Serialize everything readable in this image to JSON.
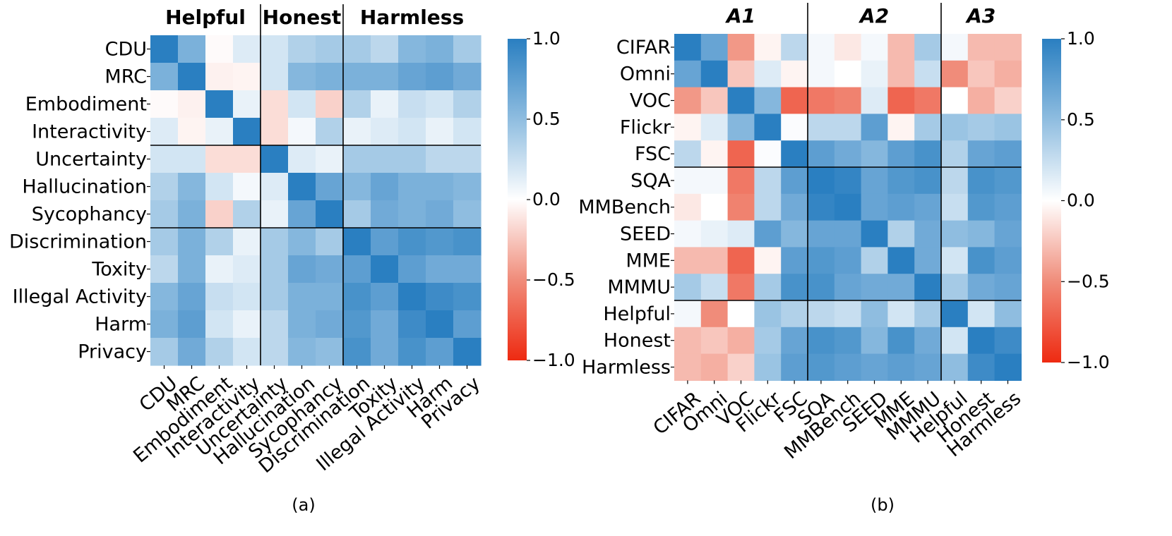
{
  "chart_data": [
    {
      "type": "heatmap",
      "caption": "(a)",
      "groups": [
        "Helpful",
        "Honest",
        "Harmless"
      ],
      "group_sizes": [
        4,
        3,
        5
      ],
      "labels": [
        "CDU",
        "MRC",
        "Embodiment",
        "Interactivity",
        "Uncertainty",
        "Hallucination",
        "Sycophancy",
        "Discrimination",
        "Toxity",
        "Illegal Activity",
        "Harm",
        "Privacy"
      ],
      "colorbar": {
        "min": -1.0,
        "max": 1.0,
        "ticks": [
          "1.0",
          "0.5",
          "0.0",
          "−0.5",
          "−1.0"
        ],
        "tick_values": [
          1.0,
          0.5,
          0.0,
          -0.5,
          -1.0
        ]
      },
      "matrix": [
        [
          1.0,
          0.6,
          -0.02,
          0.15,
          0.2,
          0.35,
          0.4,
          0.4,
          0.3,
          0.55,
          0.6,
          0.4
        ],
        [
          0.6,
          1.0,
          -0.06,
          -0.05,
          0.2,
          0.55,
          0.6,
          0.6,
          0.6,
          0.7,
          0.75,
          0.65
        ],
        [
          -0.02,
          -0.06,
          1.0,
          0.1,
          -0.15,
          0.2,
          -0.2,
          0.35,
          0.1,
          0.25,
          0.2,
          0.35
        ],
        [
          0.15,
          -0.05,
          0.1,
          1.0,
          -0.15,
          0.05,
          0.35,
          0.1,
          0.15,
          0.2,
          0.1,
          0.2
        ],
        [
          0.2,
          0.2,
          -0.15,
          -0.15,
          1.0,
          0.15,
          0.1,
          0.4,
          0.4,
          0.4,
          0.3,
          0.3
        ],
        [
          0.35,
          0.55,
          0.2,
          0.05,
          0.15,
          1.0,
          0.7,
          0.55,
          0.7,
          0.6,
          0.6,
          0.55
        ],
        [
          0.4,
          0.6,
          -0.2,
          0.35,
          0.1,
          0.7,
          1.0,
          0.4,
          0.65,
          0.6,
          0.65,
          0.5
        ],
        [
          0.4,
          0.6,
          0.35,
          0.1,
          0.4,
          0.55,
          0.4,
          1.0,
          0.75,
          0.85,
          0.8,
          0.85
        ],
        [
          0.3,
          0.6,
          0.1,
          0.15,
          0.4,
          0.7,
          0.65,
          0.75,
          1.0,
          0.75,
          0.65,
          0.65
        ],
        [
          0.55,
          0.7,
          0.25,
          0.2,
          0.4,
          0.6,
          0.6,
          0.85,
          0.75,
          1.0,
          0.9,
          0.85
        ],
        [
          0.6,
          0.75,
          0.2,
          0.1,
          0.3,
          0.6,
          0.65,
          0.8,
          0.65,
          0.9,
          1.0,
          0.75
        ],
        [
          0.4,
          0.65,
          0.35,
          0.2,
          0.3,
          0.55,
          0.5,
          0.85,
          0.65,
          0.85,
          0.75,
          1.0
        ]
      ]
    },
    {
      "type": "heatmap",
      "caption": "(b)",
      "groups": [
        "A1",
        "A2",
        "A3"
      ],
      "group_sizes": [
        5,
        5,
        3
      ],
      "labels": [
        "CIFAR",
        "Omni",
        "VOC",
        "Flickr",
        "FSC",
        "SQA",
        "MMBench",
        "SEED",
        "MME",
        "MMMU",
        "Helpful",
        "Honest",
        "Harmless"
      ],
      "colorbar": {
        "min": -1.0,
        "max": 1.0,
        "ticks": [
          "1.0",
          "0.5",
          "0.0",
          "−0.5",
          "−1.0"
        ],
        "tick_values": [
          1.0,
          0.5,
          0.0,
          -0.5,
          -1.0
        ]
      },
      "matrix": [
        [
          1.0,
          0.7,
          -0.45,
          -0.05,
          0.3,
          0.05,
          -0.1,
          0.05,
          -0.3,
          0.4,
          0.05,
          -0.3,
          -0.3
        ],
        [
          0.7,
          1.0,
          -0.25,
          0.15,
          -0.05,
          0.05,
          0.0,
          0.1,
          -0.3,
          0.25,
          -0.5,
          -0.25,
          -0.35
        ],
        [
          -0.45,
          -0.25,
          1.0,
          0.55,
          -0.7,
          -0.6,
          -0.55,
          0.15,
          -0.7,
          -0.6,
          0.0,
          -0.35,
          -0.2
        ],
        [
          -0.05,
          0.15,
          0.55,
          1.0,
          0.02,
          0.3,
          0.3,
          0.75,
          -0.05,
          0.4,
          0.45,
          0.4,
          0.45
        ],
        [
          0.3,
          -0.05,
          -0.7,
          0.02,
          1.0,
          0.75,
          0.65,
          0.55,
          0.75,
          0.85,
          0.35,
          0.7,
          0.75
        ],
        [
          0.05,
          0.05,
          -0.6,
          0.3,
          0.75,
          1.0,
          0.95,
          0.7,
          0.8,
          0.85,
          0.3,
          0.85,
          0.8
        ],
        [
          -0.1,
          0.0,
          -0.55,
          0.3,
          0.65,
          0.95,
          1.0,
          0.7,
          0.75,
          0.7,
          0.25,
          0.8,
          0.75
        ],
        [
          0.05,
          0.1,
          0.15,
          0.75,
          0.55,
          0.7,
          0.7,
          1.0,
          0.35,
          0.65,
          0.5,
          0.55,
          0.7
        ],
        [
          -0.3,
          -0.3,
          -0.7,
          -0.05,
          0.75,
          0.8,
          0.75,
          0.35,
          1.0,
          0.65,
          0.2,
          0.85,
          0.75
        ],
        [
          0.4,
          0.25,
          -0.6,
          0.4,
          0.85,
          0.85,
          0.7,
          0.65,
          0.65,
          1.0,
          0.4,
          0.65,
          0.7
        ],
        [
          0.05,
          -0.5,
          0.0,
          0.45,
          0.35,
          0.3,
          0.25,
          0.5,
          0.2,
          0.4,
          1.0,
          0.2,
          0.5
        ],
        [
          -0.3,
          -0.25,
          -0.35,
          0.4,
          0.7,
          0.85,
          0.8,
          0.55,
          0.85,
          0.65,
          0.2,
          1.0,
          0.9
        ],
        [
          -0.3,
          -0.35,
          -0.2,
          0.45,
          0.75,
          0.8,
          0.75,
          0.7,
          0.75,
          0.7,
          0.5,
          0.9,
          1.0
        ]
      ]
    }
  ]
}
